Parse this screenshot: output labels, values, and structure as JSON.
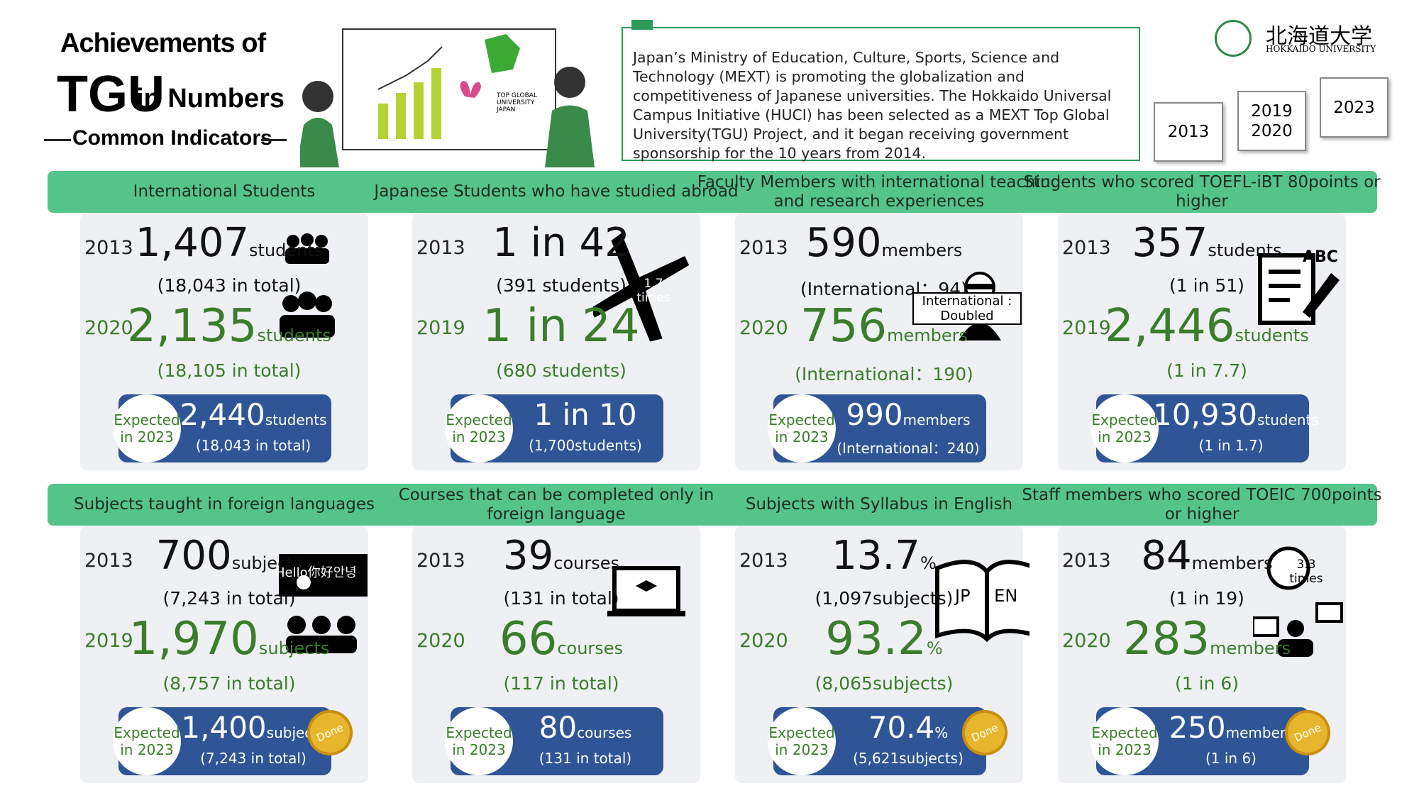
{
  "header": {
    "title_line1": "Achievements of",
    "title_big": "TGU",
    "title_rest": "in Numbers",
    "subtitle": "Common Indicators",
    "illustration_label": "TOP GLOBAL UNIVERSITY JAPAN",
    "intro": "Japan’s Ministry of Education, Culture, Sports, Science and Technology (MEXT) is promoting the globalization and competitiveness of Japanese universities. The Hokkaido Universal Campus Initiative (HUCI) has been selected as a MEXT Top Global University(TGU) Project, and it began receiving government sponsorship for the 10 years from 2014.",
    "year_tags": [
      "2013",
      "2019 2020",
      "2023"
    ],
    "logo_name": "北海道大学",
    "logo_sub": "HOKKAIDO UNIVERSITY"
  },
  "panels": [
    {
      "header": "International Students",
      "rows": [
        {
          "year": "2013",
          "value": "1,407",
          "unit": "students",
          "note": "(18,043 in total)"
        },
        {
          "year": "2020",
          "value": "2,135",
          "unit": "students",
          "note": "(18,105 in total)"
        }
      ],
      "expected": {
        "label": "Expected in 2023",
        "value": "2,440",
        "unit": "students",
        "note": "(18,043 in total)"
      }
    },
    {
      "header": "Japanese Students who have studied abroad",
      "rows": [
        {
          "year": "2013",
          "value": "1 in 42",
          "unit": "",
          "note": "(391 students)"
        },
        {
          "year": "2019",
          "value": "1 in 24",
          "unit": "",
          "note": "(680 students)"
        }
      ],
      "expected": {
        "label": "Expected in 2023",
        "value": "1 in 10",
        "unit": "",
        "note": "(1,700students)"
      },
      "icon_text": "1.7 times"
    },
    {
      "header": "Faculty Members with international teaching and research experiences",
      "rows": [
        {
          "year": "2013",
          "value": "590",
          "unit": "members",
          "note": "(International：94)"
        },
        {
          "year": "2020",
          "value": "756",
          "unit": "members",
          "note": "(International：190)"
        }
      ],
      "expected": {
        "label": "Expected in 2023",
        "value": "990",
        "unit": "members",
        "note": "(International：240)"
      },
      "icon_text": "International : Doubled"
    },
    {
      "header": "Students who scored TOEFL-iBT 80points or higher",
      "rows": [
        {
          "year": "2013",
          "value": "357",
          "unit": "students",
          "note": "(1 in 51)"
        },
        {
          "year": "2019",
          "value": "2,446",
          "unit": "students",
          "note": "(1 in 7.7)"
        }
      ],
      "expected": {
        "label": "Expected in 2023",
        "value": "10,930",
        "unit": "students",
        "note": "(1 in 1.7)"
      },
      "icon_text": "ABC"
    },
    {
      "header": "Subjects taught in foreign languages",
      "rows": [
        {
          "year": "2013",
          "value": "700",
          "unit": "subjects",
          "note": "(7,243 in total)"
        },
        {
          "year": "2019",
          "value": "1,970",
          "unit": "subjects",
          "note": "(8,757 in total)"
        }
      ],
      "expected": {
        "label": "Expected in 2023",
        "value": "1,400",
        "unit": "subjects",
        "note": "(7,243 in total)"
      },
      "icon_text": "Hello你好안녕",
      "badge": "Done"
    },
    {
      "header": "Courses that can be completed only in foreign language",
      "rows": [
        {
          "year": "2013",
          "value": "39",
          "unit": "courses",
          "note": "(131 in total)"
        },
        {
          "year": "2020",
          "value": "66",
          "unit": "courses",
          "note": "(117 in total)"
        }
      ],
      "expected": {
        "label": "Expected in 2023",
        "value": "80",
        "unit": "courses",
        "note": "(131 in total)"
      }
    },
    {
      "header": "Subjects with Syllabus in English",
      "rows": [
        {
          "year": "2013",
          "value": "13.7",
          "unit": "%",
          "note": "(1,097subjects)"
        },
        {
          "year": "2020",
          "value": "93.2",
          "unit": "%",
          "note": "(8,065subjects)"
        }
      ],
      "expected": {
        "label": "Expected in 2023",
        "value": "70.4",
        "unit": "%",
        "note": "(5,621subjects)"
      },
      "icon_text": "JP EN",
      "badge": "Done"
    },
    {
      "header": "Staff members who scored TOEIC 700points or higher",
      "rows": [
        {
          "year": "2013",
          "value": "84",
          "unit": "members",
          "note": "(1 in 19)"
        },
        {
          "year": "2020",
          "value": "283",
          "unit": "members",
          "note": "(1 in 6)"
        }
      ],
      "expected": {
        "label": "Expected in 2023",
        "value": "250",
        "unit": "members",
        "note": "(1 in 6)"
      },
      "icon_text": "3.3 times",
      "badge": "Done"
    }
  ]
}
